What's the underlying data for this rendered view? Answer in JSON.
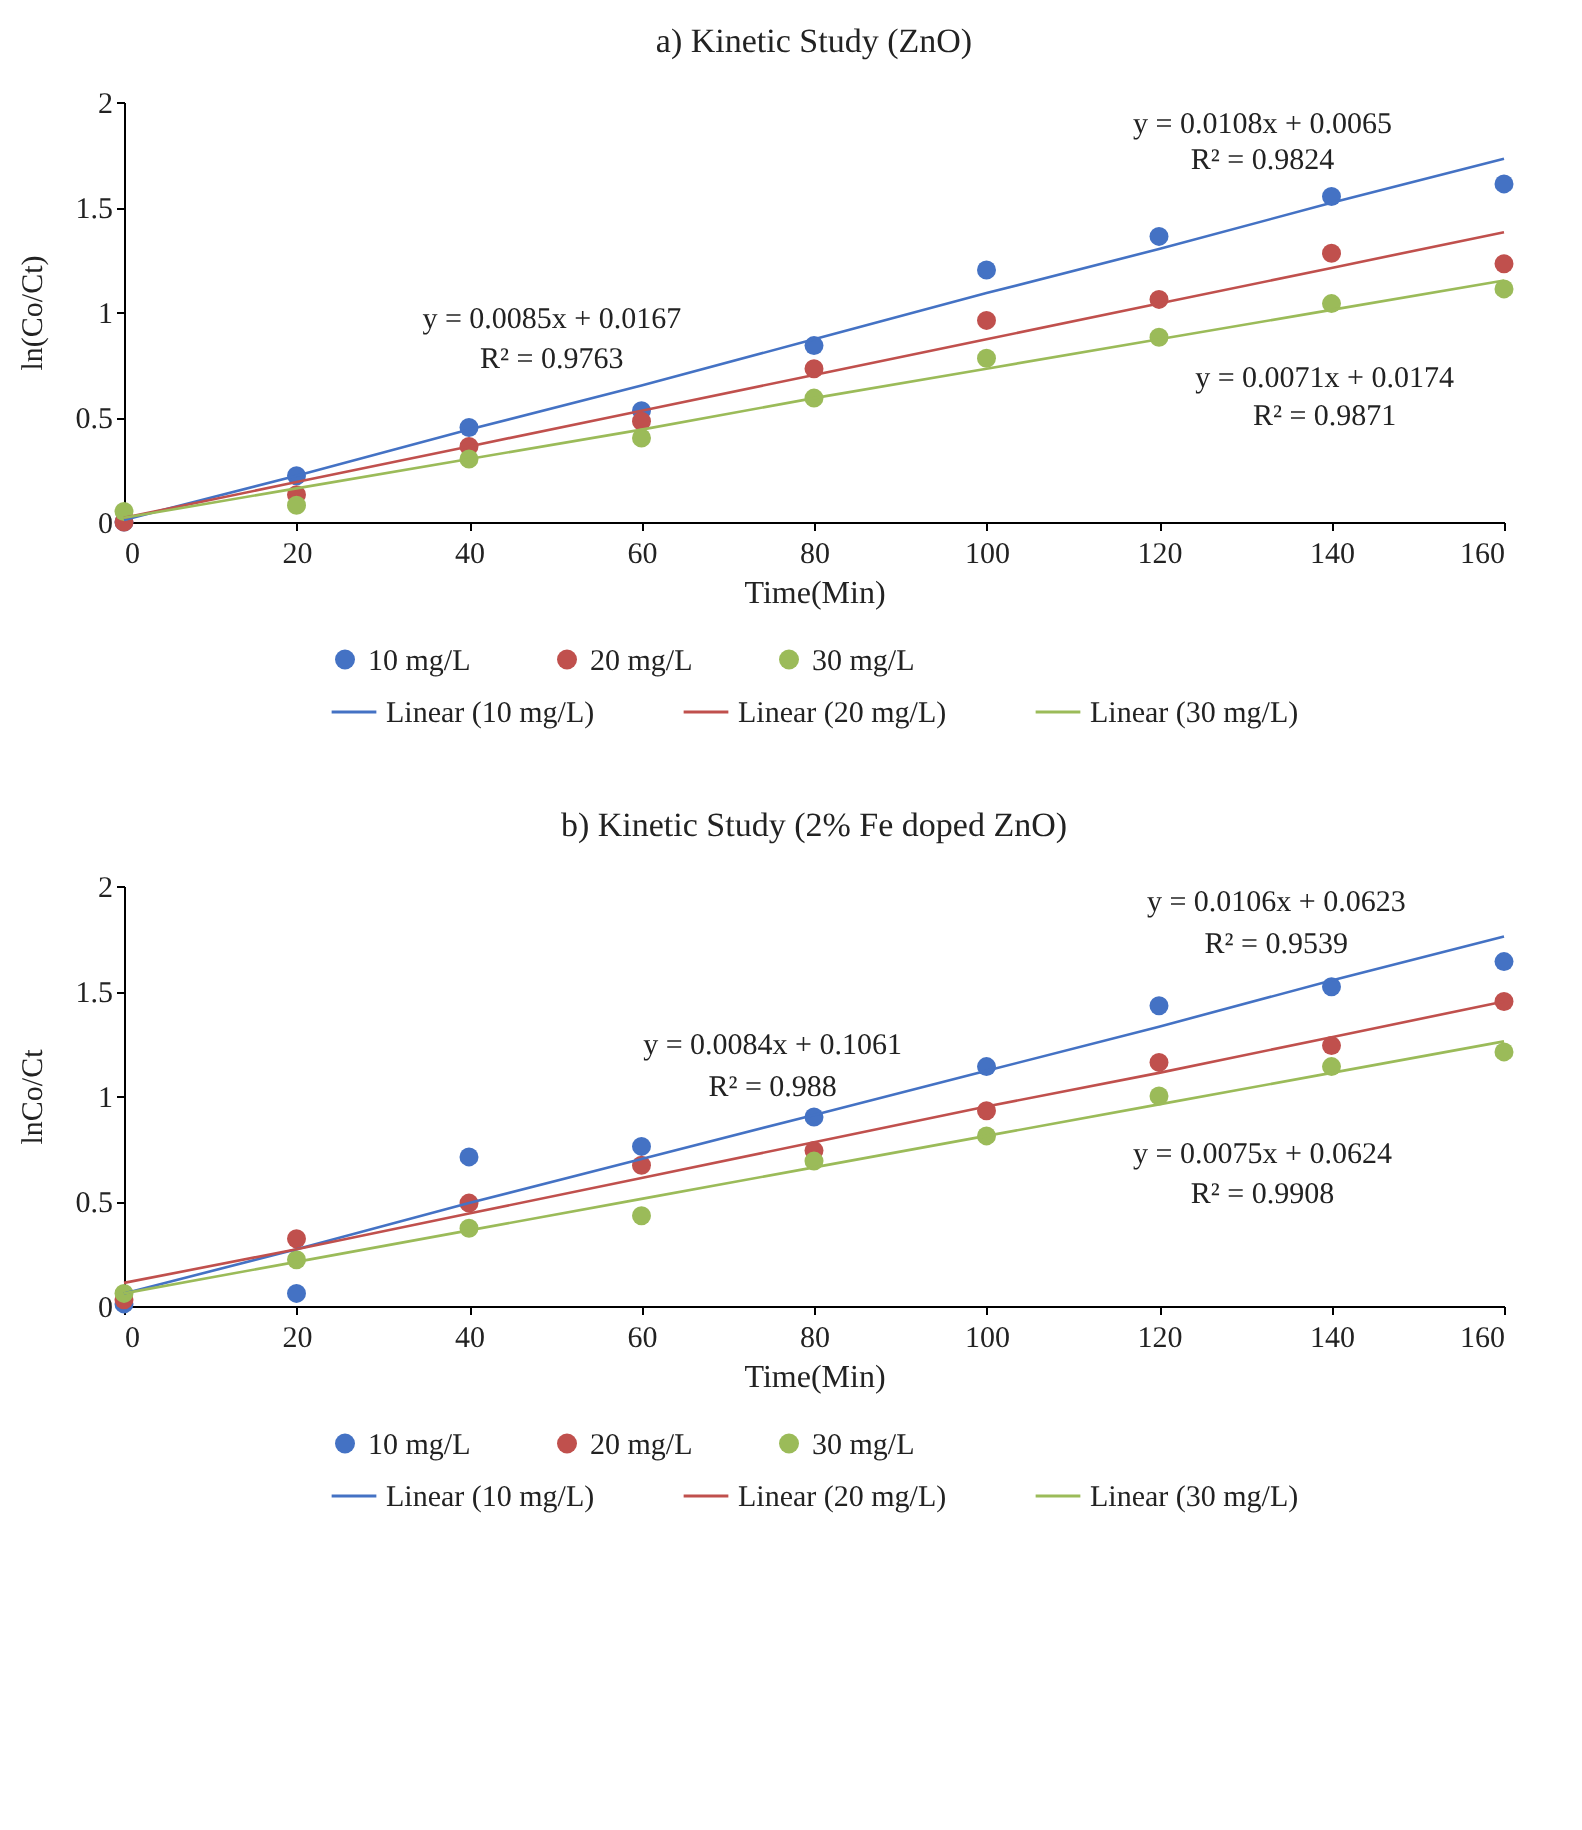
{
  "chart_data": [
    {
      "type": "scatter",
      "title": "a) Kinetic Study (ZnO)",
      "xlabel": "Time(Min)",
      "ylabel": "ln(Co/Ct)",
      "x": [
        0,
        20,
        40,
        60,
        80,
        100,
        120,
        140,
        160
      ],
      "xlim": [
        0,
        160
      ],
      "xticks": [
        0,
        20,
        40,
        60,
        80,
        100,
        120,
        140,
        160
      ],
      "ylim": [
        0,
        2
      ],
      "yticks": [
        0,
        0.5,
        1,
        1.5,
        2
      ],
      "legend": "bottom",
      "line_style": "solid",
      "series": [
        {
          "name": "10 mg/L",
          "color": "#4472c4",
          "marker": "circle",
          "values": [
            0.0,
            0.22,
            0.45,
            0.53,
            0.84,
            1.2,
            1.36,
            1.55,
            1.61
          ]
        },
        {
          "name": "20 mg/L",
          "color": "#c0504d",
          "marker": "circle",
          "values": [
            0.0,
            0.13,
            0.36,
            0.48,
            0.73,
            0.96,
            1.06,
            1.28,
            1.23
          ]
        },
        {
          "name": "30 mg/L",
          "color": "#9bbb59",
          "marker": "circle",
          "values": [
            0.05,
            0.08,
            0.3,
            0.4,
            0.59,
            0.78,
            0.88,
            1.04,
            1.11
          ]
        },
        {
          "type": "line",
          "name": "Linear (10 mg/L)",
          "color": "#4472c4",
          "values": [
            0.01,
            0.22,
            0.44,
            0.65,
            0.87,
            1.09,
            1.3,
            1.52,
            1.73
          ]
        },
        {
          "type": "line",
          "name": "Linear (20 mg/L)",
          "color": "#c0504d",
          "values": [
            0.02,
            0.19,
            0.36,
            0.53,
            0.7,
            0.87,
            1.04,
            1.21,
            1.38
          ]
        },
        {
          "type": "line",
          "name": "Linear (30 mg/L)",
          "color": "#9bbb59",
          "values": [
            0.02,
            0.16,
            0.3,
            0.44,
            0.59,
            0.73,
            0.87,
            1.01,
            1.15
          ]
        }
      ],
      "annotations": [
        "y = 0.0108x + 0.0065",
        "R² = 0.9824",
        "y = 0.0085x + 0.0167",
        "R² = 0.9763",
        "y = 0.0071x + 0.0174",
        "R² = 0.9871"
      ]
    },
    {
      "type": "scatter",
      "title": "b) Kinetic Study (2% Fe doped ZnO)",
      "xlabel": "Time(Min)",
      "ylabel": "lnCo/Ct",
      "x": [
        0,
        20,
        40,
        60,
        80,
        100,
        120,
        140,
        160
      ],
      "xlim": [
        0,
        160
      ],
      "xticks": [
        0,
        20,
        40,
        60,
        80,
        100,
        120,
        140,
        160
      ],
      "ylim": [
        0,
        2
      ],
      "yticks": [
        0,
        0.5,
        1,
        1.5,
        2
      ],
      "legend": "bottom",
      "line_style": "solid",
      "series": [
        {
          "name": "10 mg/L",
          "color": "#4472c4",
          "marker": "circle",
          "values": [
            0.01,
            0.06,
            0.71,
            0.76,
            0.9,
            1.14,
            1.43,
            1.52,
            1.64
          ]
        },
        {
          "name": "20 mg/L",
          "color": "#c0504d",
          "marker": "circle",
          "values": [
            0.03,
            0.32,
            0.49,
            0.67,
            0.74,
            0.93,
            1.16,
            1.24,
            1.45
          ]
        },
        {
          "name": "30 mg/L",
          "color": "#9bbb59",
          "marker": "circle",
          "values": [
            0.06,
            0.22,
            0.37,
            0.43,
            0.69,
            0.81,
            1.0,
            1.14,
            1.21
          ]
        },
        {
          "type": "line",
          "name": "Linear (10 mg/L)",
          "color": "#4472c4",
          "values": [
            0.06,
            0.27,
            0.49,
            0.7,
            0.91,
            1.12,
            1.33,
            1.55,
            1.76
          ]
        },
        {
          "type": "line",
          "name": "Linear (20 mg/L)",
          "color": "#c0504d",
          "values": [
            0.11,
            0.27,
            0.44,
            0.61,
            0.78,
            0.95,
            1.11,
            1.28,
            1.45
          ]
        },
        {
          "type": "line",
          "name": "Linear (30 mg/L)",
          "color": "#9bbb59",
          "values": [
            0.06,
            0.21,
            0.36,
            0.51,
            0.66,
            0.81,
            0.96,
            1.11,
            1.26
          ]
        }
      ],
      "annotations": [
        "y = 0.0106x + 0.0623",
        "R² = 0.9539",
        "y = 0.0084x + 0.1061",
        "R² = 0.988",
        "y = 0.0075x + 0.0624",
        "R² = 0.9908"
      ]
    }
  ]
}
